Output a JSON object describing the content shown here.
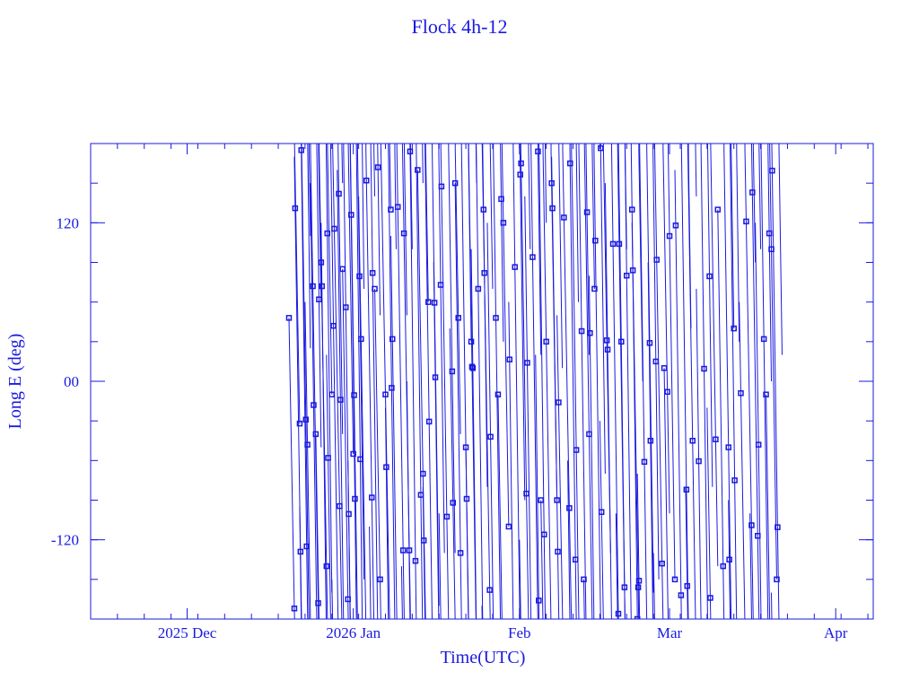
{
  "chart_data": {
    "type": "line",
    "title": "Flock 4h-12",
    "xlabel": "Time(UTC)",
    "ylabel": "Long E (deg)",
    "xlim": [
      "2025-11-13",
      "2026-04-08"
    ],
    "ylim": [
      -180,
      180
    ],
    "x_tick_labels": [
      {
        "date": "2025-12-01",
        "label": "2025 Dec"
      },
      {
        "date": "2026-01-01",
        "label": "2026 Jan"
      },
      {
        "date": "2026-02-01",
        "label": "Feb"
      },
      {
        "date": "2026-03-01",
        "label": "Mar"
      },
      {
        "date": "2026-04-01",
        "label": "Apr"
      }
    ],
    "y_tick_labels": [
      {
        "value": 120,
        "label": "120"
      },
      {
        "value": 0,
        "label": "00"
      },
      {
        "value": -120,
        "label": "-120"
      }
    ],
    "y_minor_step": 30,
    "x_minor_step_days": 5,
    "grid": false,
    "color": "#1a1ae0",
    "marker": "square",
    "tracks": [
      {
        "start": "2025-12-20",
        "lon": 48,
        "drift_deg_per_day": -220,
        "days": 2
      },
      {
        "start": "2025-12-21",
        "lon": 170,
        "drift_deg_per_day": -260,
        "days": 3
      },
      {
        "start": "2025-12-22",
        "lon": -95,
        "drift_deg_per_day": -300,
        "days": 2
      },
      {
        "start": "2025-12-23",
        "lon": 60,
        "drift_deg_per_day": -240,
        "days": 3
      },
      {
        "start": "2025-12-24",
        "lon": 150,
        "drift_deg_per_day": -280,
        "days": 2
      },
      {
        "start": "2025-12-25",
        "lon": -40,
        "drift_deg_per_day": -230,
        "days": 3
      },
      {
        "start": "2025-12-26",
        "lon": 120,
        "drift_deg_per_day": -320,
        "days": 2
      },
      {
        "start": "2025-12-27",
        "lon": 20,
        "drift_deg_per_day": -260,
        "days": 3
      },
      {
        "start": "2025-12-28",
        "lon": -150,
        "drift_deg_per_day": -210,
        "days": 2
      },
      {
        "start": "2025-12-29",
        "lon": 160,
        "drift_deg_per_day": -290,
        "days": 3
      },
      {
        "start": "2025-12-30",
        "lon": 85,
        "drift_deg_per_day": -250,
        "days": 2
      },
      {
        "start": "2025-12-31",
        "lon": -60,
        "drift_deg_per_day": -270,
        "days": 3
      },
      {
        "start": "2026-01-01",
        "lon": 10,
        "drift_deg_per_day": -330,
        "days": 2
      },
      {
        "start": "2026-01-02",
        "lon": 140,
        "drift_deg_per_day": -240,
        "days": 3
      },
      {
        "start": "2026-01-04",
        "lon": -110,
        "drift_deg_per_day": -280,
        "days": 2
      },
      {
        "start": "2026-01-05",
        "lon": 70,
        "drift_deg_per_day": -220,
        "days": 3
      },
      {
        "start": "2026-01-07",
        "lon": -20,
        "drift_deg_per_day": -300,
        "days": 2
      },
      {
        "start": "2026-01-08",
        "lon": 110,
        "drift_deg_per_day": -260,
        "days": 3
      },
      {
        "start": "2026-01-10",
        "lon": -140,
        "drift_deg_per_day": -240,
        "days": 2
      },
      {
        "start": "2026-01-11",
        "lon": 0,
        "drift_deg_per_day": -310,
        "days": 3
      },
      {
        "start": "2026-01-13",
        "lon": 160,
        "drift_deg_per_day": -230,
        "days": 2
      },
      {
        "start": "2026-01-14",
        "lon": -80,
        "drift_deg_per_day": -270,
        "days": 3
      },
      {
        "start": "2026-01-16",
        "lon": 90,
        "drift_deg_per_day": -290,
        "days": 2
      },
      {
        "start": "2026-01-17",
        "lon": -100,
        "drift_deg_per_day": -250,
        "days": 3
      },
      {
        "start": "2026-01-19",
        "lon": 40,
        "drift_deg_per_day": -220,
        "days": 2
      },
      {
        "start": "2026-01-20",
        "lon": 150,
        "drift_deg_per_day": -280,
        "days": 3
      },
      {
        "start": "2026-01-22",
        "lon": -50,
        "drift_deg_per_day": -260,
        "days": 2
      },
      {
        "start": "2026-01-23",
        "lon": 100,
        "drift_deg_per_day": -300,
        "days": 3
      },
      {
        "start": "2026-01-25",
        "lon": -170,
        "drift_deg_per_day": -240,
        "days": 2
      },
      {
        "start": "2026-01-26",
        "lon": 120,
        "drift_deg_per_day": -270,
        "days": 3
      },
      {
        "start": "2026-01-28",
        "lon": -10,
        "drift_deg_per_day": -230,
        "days": 2
      },
      {
        "start": "2026-01-30",
        "lon": 60,
        "drift_deg_per_day": -290,
        "days": 3
      },
      {
        "start": "2026-02-01",
        "lon": -120,
        "drift_deg_per_day": -250,
        "days": 2
      },
      {
        "start": "2026-02-02",
        "lon": 140,
        "drift_deg_per_day": -280,
        "days": 3
      },
      {
        "start": "2026-02-04",
        "lon": 20,
        "drift_deg_per_day": -310,
        "days": 2
      },
      {
        "start": "2026-02-05",
        "lon": -90,
        "drift_deg_per_day": -240,
        "days": 3
      },
      {
        "start": "2026-02-07",
        "lon": 170,
        "drift_deg_per_day": -260,
        "days": 2
      },
      {
        "start": "2026-02-08",
        "lon": 50,
        "drift_deg_per_day": -220,
        "days": 3
      },
      {
        "start": "2026-02-10",
        "lon": -60,
        "drift_deg_per_day": -300,
        "days": 2
      },
      {
        "start": "2026-02-11",
        "lon": 110,
        "drift_deg_per_day": -270,
        "days": 3
      },
      {
        "start": "2026-02-13",
        "lon": -150,
        "drift_deg_per_day": -250,
        "days": 2
      },
      {
        "start": "2026-02-14",
        "lon": 80,
        "drift_deg_per_day": -290,
        "days": 3
      },
      {
        "start": "2026-02-16",
        "lon": -30,
        "drift_deg_per_day": -230,
        "days": 2
      },
      {
        "start": "2026-02-17",
        "lon": 150,
        "drift_deg_per_day": -280,
        "days": 3
      },
      {
        "start": "2026-02-19",
        "lon": -100,
        "drift_deg_per_day": -260,
        "days": 2
      },
      {
        "start": "2026-02-20",
        "lon": 30,
        "drift_deg_per_day": -310,
        "days": 3
      },
      {
        "start": "2026-02-22",
        "lon": 120,
        "drift_deg_per_day": -240,
        "days": 2
      },
      {
        "start": "2026-02-23",
        "lon": -70,
        "drift_deg_per_day": -270,
        "days": 3
      },
      {
        "start": "2026-02-25",
        "lon": 90,
        "drift_deg_per_day": -300,
        "days": 2
      },
      {
        "start": "2026-02-26",
        "lon": -130,
        "drift_deg_per_day": -230,
        "days": 3
      },
      {
        "start": "2026-02-28",
        "lon": 10,
        "drift_deg_per_day": -260,
        "days": 2
      },
      {
        "start": "2026-03-02",
        "lon": 160,
        "drift_deg_per_day": -280,
        "days": 3
      },
      {
        "start": "2026-03-04",
        "lon": -80,
        "drift_deg_per_day": -250,
        "days": 2
      },
      {
        "start": "2026-03-06",
        "lon": 70,
        "drift_deg_per_day": -290,
        "days": 3
      },
      {
        "start": "2026-03-08",
        "lon": -20,
        "drift_deg_per_day": -240,
        "days": 2
      },
      {
        "start": "2026-03-10",
        "lon": 130,
        "drift_deg_per_day": -270,
        "days": 3
      },
      {
        "start": "2026-03-12",
        "lon": -90,
        "drift_deg_per_day": -300,
        "days": 2
      },
      {
        "start": "2026-03-14",
        "lon": 60,
        "drift_deg_per_day": -230,
        "days": 3
      },
      {
        "start": "2026-03-16",
        "lon": -100,
        "drift_deg_per_day": -260,
        "days": 2
      },
      {
        "start": "2026-03-17",
        "lon": 120,
        "drift_deg_per_day": -280,
        "days": 3
      },
      {
        "start": "2026-03-19",
        "lon": -10,
        "drift_deg_per_day": -250,
        "days": 2
      },
      {
        "start": "2026-03-20",
        "lon": -160,
        "drift_deg_per_day": -270,
        "days": 2
      }
    ]
  }
}
